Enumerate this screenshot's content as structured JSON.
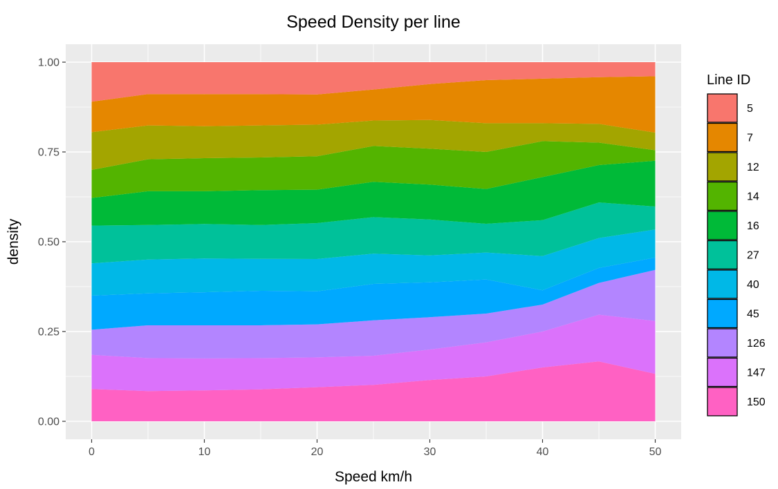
{
  "chart_data": {
    "type": "area",
    "stacking": "fill",
    "title": "Speed Density per line",
    "xlabel": "Speed km/h",
    "ylabel": "density",
    "xlim": [
      -2.3,
      52.3
    ],
    "ylim": [
      -0.05,
      1.05
    ],
    "xticks": [
      0,
      10,
      20,
      30,
      40,
      50
    ],
    "xtick_labels": [
      "0",
      "10",
      "20",
      "30",
      "40",
      "50"
    ],
    "yticks": [
      0,
      0.25,
      0.5,
      0.75,
      1
    ],
    "ytick_labels": [
      "0.00",
      "0.25",
      "0.50",
      "0.75",
      "1.00"
    ],
    "grid": true,
    "legend": {
      "title": "Line ID",
      "position": "right"
    },
    "x": [
      0,
      5,
      10,
      15,
      20,
      25,
      30,
      35,
      40,
      45,
      50
    ],
    "series": [
      {
        "name": "150",
        "color": "#FF61C3",
        "values": [
          0.09,
          0.085,
          0.087,
          0.09,
          0.095,
          0.1,
          0.115,
          0.125,
          0.15,
          0.16,
          0.135
        ]
      },
      {
        "name": "147",
        "color": "#DB72FB",
        "values": [
          0.095,
          0.093,
          0.09,
          0.088,
          0.083,
          0.08,
          0.085,
          0.095,
          0.1,
          0.125,
          0.15
        ]
      },
      {
        "name": "126",
        "color": "#B385FF",
        "values": [
          0.07,
          0.092,
          0.093,
          0.092,
          0.092,
          0.097,
          0.09,
          0.08,
          0.075,
          0.085,
          0.145
        ]
      },
      {
        "name": "45",
        "color": "#00A9FF",
        "values": [
          0.095,
          0.09,
          0.093,
          0.097,
          0.092,
          0.1,
          0.097,
          0.095,
          0.04,
          0.04,
          0.035
        ]
      },
      {
        "name": "40",
        "color": "#00B8E7",
        "values": [
          0.09,
          0.095,
          0.095,
          0.09,
          0.09,
          0.083,
          0.075,
          0.075,
          0.095,
          0.08,
          0.08
        ]
      },
      {
        "name": "27",
        "color": "#00C19A",
        "values": [
          0.105,
          0.097,
          0.097,
          0.095,
          0.1,
          0.1,
          0.1,
          0.08,
          0.1,
          0.095,
          0.065
        ]
      },
      {
        "name": "16",
        "color": "#00BA38",
        "values": [
          0.077,
          0.095,
          0.092,
          0.098,
          0.093,
          0.097,
          0.097,
          0.097,
          0.12,
          0.1,
          0.13
        ]
      },
      {
        "name": "14",
        "color": "#53B400",
        "values": [
          0.078,
          0.09,
          0.093,
          0.092,
          0.093,
          0.098,
          0.1,
          0.103,
          0.1,
          0.06,
          0.03
        ]
      },
      {
        "name": "12",
        "color": "#A3A500",
        "values": [
          0.105,
          0.095,
          0.09,
          0.09,
          0.088,
          0.07,
          0.08,
          0.08,
          0.05,
          0.05,
          0.05
        ]
      },
      {
        "name": "7",
        "color": "#E58700",
        "values": [
          0.085,
          0.088,
          0.09,
          0.088,
          0.084,
          0.085,
          0.1,
          0.12,
          0.124,
          0.125,
          0.16
        ]
      },
      {
        "name": "5",
        "color": "#F8766D",
        "values": [
          0.11,
          0.09,
          0.09,
          0.09,
          0.09,
          0.075,
          0.061,
          0.05,
          0.046,
          0.04,
          0.04
        ]
      }
    ]
  }
}
